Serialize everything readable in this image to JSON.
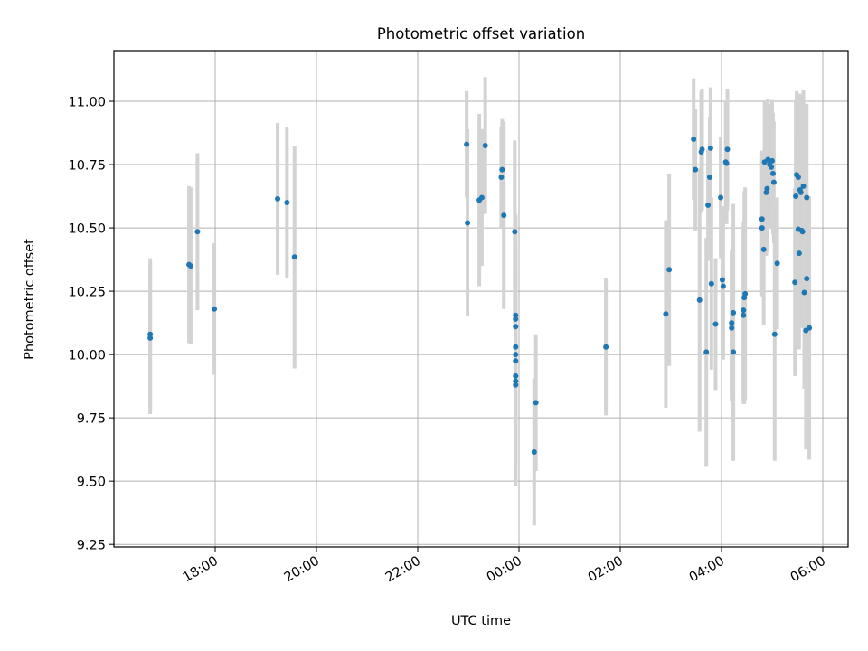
{
  "chart_data": {
    "type": "scatter",
    "title": "Photometric offset variation",
    "xlabel": "UTC time",
    "ylabel": "Photometric offset",
    "x_axis": {
      "kind": "time",
      "range": [
        "16:00",
        "06:30"
      ],
      "tick_labels": [
        "18:00",
        "20:00",
        "22:00",
        "00:00",
        "02:00",
        "04:00",
        "06:00"
      ],
      "tick_values": [
        "18:00",
        "20:00",
        "22:00",
        "00:00",
        "02:00",
        "04:00",
        "06:00"
      ]
    },
    "y_axis": {
      "range": [
        9.24,
        11.2
      ],
      "tick_labels": [
        "9.25",
        "9.50",
        "9.75",
        "10.00",
        "10.25",
        "10.50",
        "10.75",
        "11.00"
      ],
      "tick_values": [
        9.25,
        9.5,
        9.75,
        10.0,
        10.25,
        10.5,
        10.75,
        11.0
      ]
    },
    "grid": true,
    "marker_color": "#1f77b4",
    "errorbar_color": "#d3d3d3",
    "series": [
      {
        "points": [
          {
            "x": "16:43",
            "y": 10.08,
            "err": 0.3
          },
          {
            "x": "16:43",
            "y": 10.065,
            "err": 0.3
          },
          {
            "x": "17:29",
            "y": 10.355,
            "err": 0.31
          },
          {
            "x": "17:31",
            "y": 10.35,
            "err": 0.31
          },
          {
            "x": "17:39",
            "y": 10.485,
            "err": 0.31
          },
          {
            "x": "17:59",
            "y": 10.18,
            "err": 0.26
          },
          {
            "x": "19:14",
            "y": 10.615,
            "err": 0.3
          },
          {
            "x": "19:25",
            "y": 10.6,
            "err": 0.3
          },
          {
            "x": "19:34",
            "y": 10.385,
            "err": 0.44
          },
          {
            "x": "22:58",
            "y": 10.83,
            "err": 0.21
          },
          {
            "x": "22:59",
            "y": 10.52,
            "err": 0.37
          },
          {
            "x": "23:13",
            "y": 10.61,
            "err": 0.34
          },
          {
            "x": "23:16",
            "y": 10.62,
            "err": 0.27
          },
          {
            "x": "23:20",
            "y": 10.825,
            "err": 0.27
          },
          {
            "x": "23:39",
            "y": 10.7,
            "err": 0.2
          },
          {
            "x": "23:40",
            "y": 10.73,
            "err": 0.2
          },
          {
            "x": "23:42",
            "y": 10.55,
            "err": 0.37
          },
          {
            "x": "23:55",
            "y": 10.485,
            "err": 0.36
          },
          {
            "x": "23:56",
            "y": 10.155,
            "err": 0.4
          },
          {
            "x": "23:56",
            "y": 10.14,
            "err": 0.4
          },
          {
            "x": "23:56",
            "y": 10.11,
            "err": 0.4
          },
          {
            "x": "23:56",
            "y": 10.03,
            "err": 0.4
          },
          {
            "x": "23:56",
            "y": 10.0,
            "err": 0.4
          },
          {
            "x": "23:56",
            "y": 9.975,
            "err": 0.4
          },
          {
            "x": "23:56",
            "y": 9.915,
            "err": 0.4
          },
          {
            "x": "23:56",
            "y": 9.895,
            "err": 0.4
          },
          {
            "x": "23:56",
            "y": 9.88,
            "err": 0.4
          },
          {
            "x": "00:18",
            "y": 9.615,
            "err": 0.29
          },
          {
            "x": "00:20",
            "y": 9.81,
            "err": 0.27
          },
          {
            "x": "01:43",
            "y": 10.03,
            "err": 0.27
          },
          {
            "x": "02:54",
            "y": 10.16,
            "err": 0.37
          },
          {
            "x": "02:58",
            "y": 10.335,
            "err": 0.38
          },
          {
            "x": "03:27",
            "y": 10.85,
            "err": 0.24
          },
          {
            "x": "03:29",
            "y": 10.73,
            "err": 0.24
          },
          {
            "x": "03:34",
            "y": 10.215,
            "err": 0.52
          },
          {
            "x": "03:36",
            "y": 10.8,
            "err": 0.24
          },
          {
            "x": "03:37",
            "y": 10.81,
            "err": 0.24
          },
          {
            "x": "03:42",
            "y": 10.01,
            "err": 0.45
          },
          {
            "x": "03:44",
            "y": 10.59,
            "err": 0.22
          },
          {
            "x": "03:46",
            "y": 10.7,
            "err": 0.24
          },
          {
            "x": "03:47",
            "y": 10.815,
            "err": 0.24
          },
          {
            "x": "03:48",
            "y": 10.28,
            "err": 0.34
          },
          {
            "x": "03:53",
            "y": 10.12,
            "err": 0.26
          },
          {
            "x": "03:59",
            "y": 10.62,
            "err": 0.24
          },
          {
            "x": "04:01",
            "y": 10.295,
            "err": 0.29
          },
          {
            "x": "04:02",
            "y": 10.27,
            "err": 0.29
          },
          {
            "x": "04:05",
            "y": 10.76,
            "err": 0.24
          },
          {
            "x": "04:06",
            "y": 10.755,
            "err": 0.24
          },
          {
            "x": "04:07",
            "y": 10.81,
            "err": 0.24
          },
          {
            "x": "04:12",
            "y": 10.125,
            "err": 0.29
          },
          {
            "x": "04:12",
            "y": 10.105,
            "err": 0.29
          },
          {
            "x": "04:14",
            "y": 10.165,
            "err": 0.43
          },
          {
            "x": "04:14",
            "y": 10.01,
            "err": 0.43
          },
          {
            "x": "04:26",
            "y": 10.175,
            "err": 0.35
          },
          {
            "x": "04:26",
            "y": 10.155,
            "err": 0.35
          },
          {
            "x": "04:27",
            "y": 10.225,
            "err": 0.42
          },
          {
            "x": "04:28",
            "y": 10.24,
            "err": 0.42
          },
          {
            "x": "04:48",
            "y": 10.535,
            "err": 0.27
          },
          {
            "x": "04:48",
            "y": 10.5,
            "err": 0.27
          },
          {
            "x": "04:50",
            "y": 10.415,
            "err": 0.3
          },
          {
            "x": "04:51",
            "y": 10.76,
            "err": 0.24
          },
          {
            "x": "04:53",
            "y": 10.64,
            "err": 0.25
          },
          {
            "x": "04:54",
            "y": 10.655,
            "err": 0.25
          },
          {
            "x": "04:55",
            "y": 10.77,
            "err": 0.24
          },
          {
            "x": "04:57",
            "y": 10.75,
            "err": 0.24
          },
          {
            "x": "04:59",
            "y": 10.74,
            "err": 0.24
          },
          {
            "x": "05:00",
            "y": 10.765,
            "err": 0.24
          },
          {
            "x": "05:01",
            "y": 10.715,
            "err": 0.24
          },
          {
            "x": "05:02",
            "y": 10.68,
            "err": 0.24
          },
          {
            "x": "05:03",
            "y": 10.08,
            "err": 0.5
          },
          {
            "x": "05:06",
            "y": 10.36,
            "err": 0.26
          },
          {
            "x": "05:27",
            "y": 10.285,
            "err": 0.37
          },
          {
            "x": "05:28",
            "y": 10.625,
            "err": 0.38
          },
          {
            "x": "05:29",
            "y": 10.71,
            "err": 0.33
          },
          {
            "x": "05:31",
            "y": 10.7,
            "err": 0.33
          },
          {
            "x": "05:31",
            "y": 10.495,
            "err": 0.38
          },
          {
            "x": "05:32",
            "y": 10.4,
            "err": 0.38
          },
          {
            "x": "05:33",
            "y": 10.65,
            "err": 0.38
          },
          {
            "x": "05:34",
            "y": 10.64,
            "err": 0.38
          },
          {
            "x": "05:35",
            "y": 10.49,
            "err": 0.38
          },
          {
            "x": "05:36",
            "y": 10.485,
            "err": 0.38
          },
          {
            "x": "05:37",
            "y": 10.665,
            "err": 0.38
          },
          {
            "x": "05:38",
            "y": 10.245,
            "err": 0.38
          },
          {
            "x": "05:40",
            "y": 10.095,
            "err": 0.47
          },
          {
            "x": "05:41",
            "y": 10.62,
            "err": 0.37
          },
          {
            "x": "05:41",
            "y": 10.3,
            "err": 0.38
          },
          {
            "x": "05:44",
            "y": 10.105,
            "err": 0.52
          }
        ]
      }
    ]
  }
}
